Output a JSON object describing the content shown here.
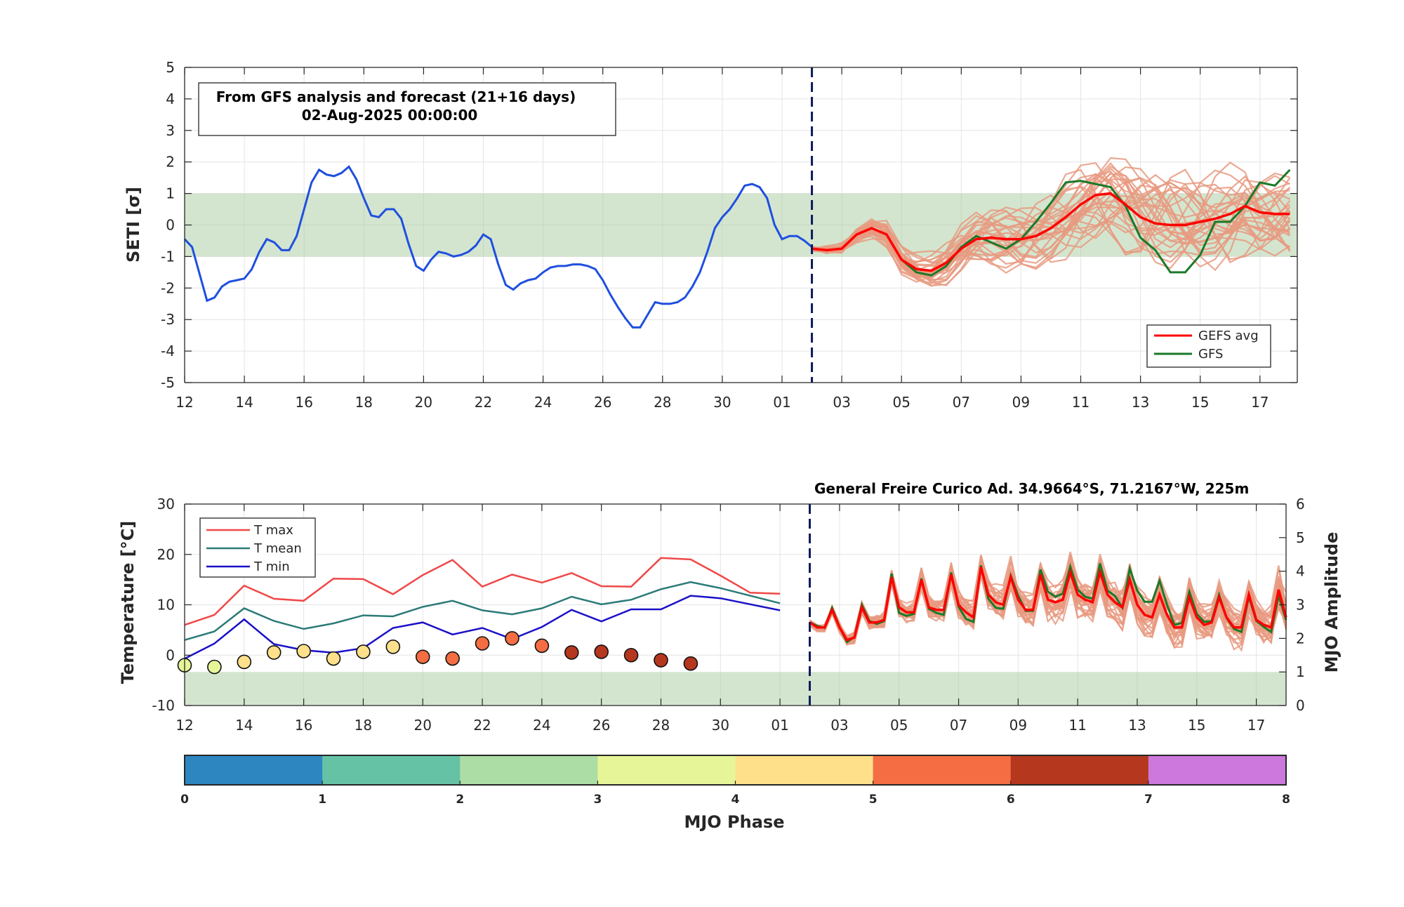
{
  "chart_data": [
    {
      "id": "seti",
      "type": "line",
      "ylabel": "SETI [σ]",
      "ylim": [
        -5,
        5
      ],
      "yticks": [
        -5,
        -4,
        -3,
        -2,
        -1,
        0,
        1,
        2,
        3,
        4,
        5
      ],
      "xlim_days": [
        0,
        37
      ],
      "xtick_labels": [
        "12",
        "14",
        "16",
        "18",
        "20",
        "22",
        "24",
        "26",
        "28",
        "30",
        "01",
        "03",
        "05",
        "07",
        "09",
        "11",
        "13",
        "15",
        "17"
      ],
      "band": [
        -1,
        1
      ],
      "forecast_start_day": 21,
      "annotation": [
        "From GFS analysis and forecast (21+16 days)",
        "02-Aug-2025 00:00:00"
      ],
      "legend": {
        "position": "bottom-right",
        "entries": [
          "GEFS avg",
          "GFS"
        ]
      },
      "colors": {
        "analysis": "#1f4fe0",
        "gefs_avg": "#ff0000",
        "gfs": "#1a7a28",
        "members": "#e89a80",
        "band": "#a8cca0",
        "forecast_line": "#0d1a5c"
      },
      "analysis": {
        "x": [
          0,
          0.25,
          0.75,
          1,
          1.25,
          1.5,
          1.75,
          2,
          2.25,
          2.5,
          2.75,
          3,
          3.25,
          3.5,
          3.75,
          4,
          4.25,
          4.5,
          4.75,
          5,
          5.25,
          5.5,
          5.75,
          6,
          6.25,
          6.5,
          6.75,
          7,
          7.25,
          7.5,
          7.75,
          8,
          8.25,
          8.5,
          8.75,
          9,
          9.25,
          9.5,
          9.75,
          10,
          10.25,
          10.5,
          10.75,
          11,
          11.25,
          11.5,
          11.75,
          12,
          12.25,
          12.5,
          12.75,
          13,
          13.25,
          13.5,
          13.75,
          14,
          14.25,
          14.5,
          14.75,
          15,
          15.25,
          15.5,
          15.75,
          16,
          16.25,
          16.5,
          16.75,
          17,
          17.25,
          17.5,
          17.75,
          18,
          18.25,
          18.5,
          18.75,
          19,
          19.25,
          19.5,
          19.75,
          20,
          20.25,
          20.5,
          20.75,
          21
        ],
        "y": [
          -0.45,
          -0.7,
          -2.4,
          -2.3,
          -1.95,
          -1.8,
          -1.75,
          -1.7,
          -1.4,
          -0.85,
          -0.45,
          -0.55,
          -0.8,
          -0.8,
          -0.35,
          0.5,
          1.35,
          1.75,
          1.6,
          1.55,
          1.65,
          1.85,
          1.45,
          0.85,
          0.3,
          0.25,
          0.5,
          0.5,
          0.2,
          -0.6,
          -1.3,
          -1.45,
          -1.1,
          -0.85,
          -0.9,
          -1.0,
          -0.95,
          -0.85,
          -0.65,
          -0.3,
          -0.45,
          -1.25,
          -1.9,
          -2.05,
          -1.85,
          -1.75,
          -1.7,
          -1.5,
          -1.35,
          -1.3,
          -1.3,
          -1.25,
          -1.25,
          -1.3,
          -1.4,
          -1.75,
          -2.2,
          -2.6,
          -2.95,
          -3.25,
          -3.25,
          -2.85,
          -2.45,
          -2.5,
          -2.5,
          -2.45,
          -2.3,
          -1.95,
          -1.5,
          -0.85,
          -0.1,
          0.25,
          0.5,
          0.85,
          1.25,
          1.3,
          1.2,
          0.85,
          0.0,
          -0.45,
          -0.35,
          -0.35,
          -0.5,
          -0.7
        ]
      },
      "gefs_avg": {
        "x": [
          21,
          21.5,
          22,
          22.5,
          23,
          23.5,
          24,
          24.5,
          25,
          25.5,
          26,
          26.5,
          27,
          27.5,
          28,
          28.5,
          29,
          29.5,
          30,
          30.5,
          31,
          31.5,
          32,
          32.5,
          33,
          33.5,
          34,
          34.5,
          35,
          35.5,
          36,
          36.5,
          37
        ],
        "y": [
          -0.75,
          -0.8,
          -0.75,
          -0.3,
          -0.1,
          -0.3,
          -1.1,
          -1.4,
          -1.45,
          -1.2,
          -0.75,
          -0.45,
          -0.4,
          -0.45,
          -0.45,
          -0.35,
          -0.1,
          0.25,
          0.65,
          0.95,
          1.0,
          0.65,
          0.25,
          0.05,
          0.0,
          0.0,
          0.1,
          0.2,
          0.35,
          0.6,
          0.4,
          0.35,
          0.35
        ]
      },
      "gfs": {
        "x": [
          21,
          21.5,
          22,
          22.5,
          23,
          23.5,
          24,
          24.5,
          25,
          25.5,
          26,
          26.5,
          27,
          27.5,
          28,
          28.5,
          29,
          29.5,
          30,
          30.5,
          31,
          31.5,
          32,
          32.5,
          33,
          33.5,
          34,
          34.5,
          35,
          35.5,
          36,
          36.5,
          37
        ],
        "y": [
          -0.75,
          -0.8,
          -0.75,
          -0.3,
          -0.1,
          -0.3,
          -1.1,
          -1.5,
          -1.6,
          -1.3,
          -0.7,
          -0.35,
          -0.55,
          -0.75,
          -0.45,
          0.1,
          0.7,
          1.35,
          1.4,
          1.3,
          1.2,
          0.6,
          -0.4,
          -0.8,
          -1.5,
          -1.5,
          -0.95,
          0.1,
          0.1,
          0.6,
          1.35,
          1.25,
          1.75
        ]
      },
      "members_note": "Approximately 30 GEFS ensemble members fan out from the GEFS average with growing spread, ranging about -1.7 to 2.4 by day 37."
    },
    {
      "id": "temperature",
      "type": "line",
      "title": "General Freire Curico Ad. 34.9664°S, 71.2167°W, 225m",
      "ylabel": "Temperature [°C]",
      "ylabel_right": "MJO Amplitude",
      "ylim": [
        -10,
        30
      ],
      "yticks": [
        -10,
        0,
        10,
        20,
        30
      ],
      "ylim_right": [
        0,
        6
      ],
      "yticks_right": [
        0,
        1,
        2,
        3,
        4,
        5,
        6
      ],
      "xlim_days": [
        0,
        37
      ],
      "xtick_labels": [
        "12",
        "14",
        "16",
        "18",
        "20",
        "22",
        "24",
        "26",
        "28",
        "30",
        "01",
        "03",
        "05",
        "07",
        "09",
        "11",
        "13",
        "15",
        "17"
      ],
      "band_right": [
        0,
        1
      ],
      "forecast_start_day": 21,
      "legend": {
        "position": "top-left",
        "entries": [
          "T max",
          "T mean",
          "T min"
        ]
      },
      "colors": {
        "tmax": "#f04848",
        "tmean": "#2b7b78",
        "tmin": "#1a10c8",
        "gefs_avg": "#ff0000",
        "gfs": "#1a7a28",
        "members": "#e89a80",
        "band": "#a8cca0",
        "forecast_line": "#0d1a5c"
      },
      "days": [
        0,
        1,
        2,
        3,
        4,
        5,
        6,
        7,
        8,
        9,
        10,
        11,
        12,
        13,
        14,
        15,
        16,
        17,
        18,
        19,
        20
      ],
      "tmax": [
        6.0,
        8.0,
        13.8,
        11.2,
        10.8,
        15.2,
        15.1,
        12.1,
        15.9,
        18.9,
        13.6,
        16.0,
        14.4,
        16.3,
        13.7,
        13.6,
        19.3,
        19.0,
        15.8,
        12.4,
        12.2
      ],
      "tmean": [
        3.0,
        4.7,
        9.3,
        6.8,
        5.2,
        6.3,
        7.9,
        7.7,
        9.6,
        10.8,
        8.9,
        8.1,
        9.3,
        11.6,
        10.1,
        11.0,
        13.1,
        14.5,
        13.3,
        11.8,
        10.3
      ],
      "tmin": [
        -0.7,
        2.3,
        7.1,
        2.2,
        1.0,
        0.5,
        1.4,
        5.4,
        6.5,
        4.1,
        5.4,
        3.2,
        5.6,
        9.0,
        6.7,
        9.1,
        9.1,
        11.8,
        11.3,
        10.1,
        8.9
      ],
      "forecast_x_start": 21,
      "forecast_x_step": 0.25,
      "forecast_gefs_avg": [
        6.5,
        5.5,
        5.5,
        9,
        5.5,
        3,
        3.5,
        9.5,
        6.5,
        6.5,
        7,
        15.5,
        9.5,
        8.5,
        8.5,
        15,
        9.5,
        9,
        9,
        16,
        10,
        8.5,
        7.5,
        17.5,
        12,
        10.5,
        10,
        15.5,
        11,
        9,
        9,
        16,
        11,
        10.5,
        11,
        16.5,
        12,
        11,
        10.5,
        16.5,
        12,
        10.5,
        9.5,
        15,
        10,
        8,
        7.5,
        12,
        8,
        5.5,
        5.5,
        11.5,
        7.5,
        6,
        6.5,
        11.5,
        7.5,
        5.5,
        5.5,
        12,
        7,
        6,
        5.5,
        13,
        7.5
      ],
      "forecast_gfs": [
        6.5,
        5.8,
        5.4,
        9.4,
        5.6,
        2.6,
        3.6,
        10,
        6.8,
        6.2,
        6.8,
        16.2,
        8.4,
        7.8,
        8.2,
        15.2,
        9.2,
        8.4,
        8,
        16.4,
        9.6,
        7.2,
        6.6,
        17.8,
        11.2,
        9.4,
        9.2,
        15.8,
        11.8,
        8.8,
        8.8,
        17,
        12.6,
        11.6,
        12.2,
        17.6,
        13,
        11.6,
        11.2,
        18.2,
        12.8,
        11.8,
        9.4,
        17.2,
        12.8,
        10.6,
        10.6,
        14.8,
        10,
        6,
        6.4,
        12.6,
        8.2,
        6.6,
        6.8,
        12,
        7.4,
        5.2,
        4.6,
        11.6,
        6.8,
        5.6,
        4.6,
        11.8,
        7
      ],
      "members_note": "Approximately 30 GEFS ensemble members with widening spread, temperatures roughly 0 to 23 °C.",
      "mjo": {
        "days": [
          0,
          1,
          2,
          3,
          4,
          5,
          6,
          7,
          8,
          9,
          10,
          11,
          12,
          13,
          14,
          15,
          16,
          17
        ],
        "amplitude": [
          1.2,
          1.15,
          1.3,
          1.58,
          1.62,
          1.4,
          1.6,
          1.75,
          1.45,
          1.4,
          1.85,
          2.0,
          1.78,
          1.58,
          1.6,
          1.5,
          1.35,
          1.25
        ],
        "phase": [
          3.5,
          3.5,
          4.5,
          4.5,
          4.5,
          4.5,
          4.5,
          4.5,
          5.5,
          5.5,
          5.5,
          5.5,
          5.5,
          6.5,
          6.5,
          6.5,
          6.5,
          6.5
        ]
      }
    },
    {
      "id": "mjo-colorbar",
      "type": "heatmap",
      "xlabel": "MJO Phase",
      "ticks": [
        0,
        1,
        2,
        3,
        4,
        5,
        6,
        7,
        8
      ],
      "colors": [
        "#2e86c1",
        "#66c2a5",
        "#abdda4",
        "#e6f598",
        "#fee08b",
        "#f46d43",
        "#b5381e",
        "#cc78dc"
      ]
    }
  ]
}
